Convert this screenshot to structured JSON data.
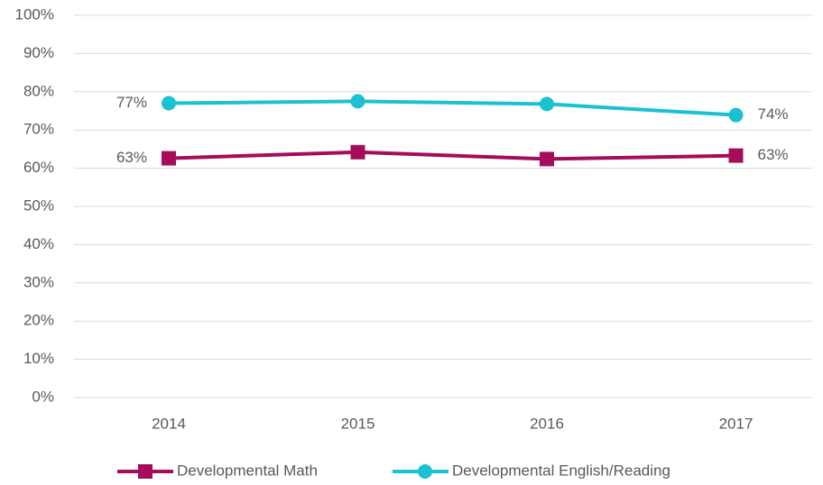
{
  "chart_data": {
    "type": "line",
    "categories": [
      "2014",
      "2015",
      "2016",
      "2017"
    ],
    "series": [
      {
        "name": "Developmental Math",
        "color": "#a50d5b",
        "marker": "square",
        "values": [
          62.6,
          64.2,
          62.4,
          63.3
        ],
        "value_labels": [
          "63%",
          null,
          null,
          "63%"
        ]
      },
      {
        "name": "Developmental English/Reading",
        "color": "#1bc1d3",
        "marker": "circle",
        "values": [
          77.0,
          77.5,
          76.8,
          73.9
        ],
        "value_labels": [
          "77%",
          null,
          null,
          "74%"
        ]
      }
    ],
    "ylim": [
      0,
      100
    ],
    "yticks": [
      {
        "value": 0,
        "label": "0%"
      },
      {
        "value": 10,
        "label": "10%"
      },
      {
        "value": 20,
        "label": "20%"
      },
      {
        "value": 30,
        "label": "30%"
      },
      {
        "value": 40,
        "label": "40%"
      },
      {
        "value": 50,
        "label": "50%"
      },
      {
        "value": 60,
        "label": "60%"
      },
      {
        "value": 70,
        "label": "70%"
      },
      {
        "value": 80,
        "label": "80%"
      },
      {
        "value": 90,
        "label": "90%"
      },
      {
        "value": 100,
        "label": "100%"
      }
    ],
    "grid": true,
    "legend": "bottom"
  }
}
